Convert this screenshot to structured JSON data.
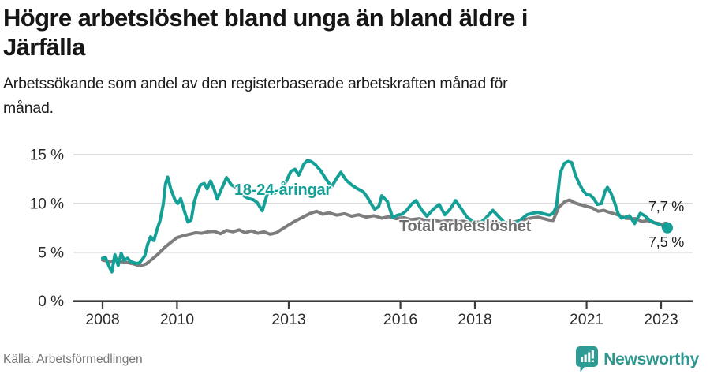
{
  "header": {
    "title_lines": [
      "Högre arbetslöshet bland unga än bland äldre i",
      "Järfälla"
    ],
    "subtitle_lines": [
      "Arbetssökande som andel av den registerbaserade arbetskraften månad för",
      "månad."
    ]
  },
  "chart_data": {
    "type": "line",
    "title": "Högre arbetslöshet bland unga än bland äldre i Järfälla",
    "subtitle": "Arbetssökande som andel av den registerbaserade arbetskraften månad för månad.",
    "unit": "%",
    "grid": "horizontal",
    "legend_position": "inline-annotations",
    "x_ticks": [
      2008,
      2010,
      2013,
      2016,
      2018,
      2021,
      2023
    ],
    "x_tick_labels": [
      "2008",
      "2010",
      "2013",
      "2016",
      "2018",
      "2021",
      "2023"
    ],
    "y_ticks": [
      0,
      5,
      10,
      15
    ],
    "y_tick_labels": [
      "0 %",
      "5 %",
      "10 %",
      "15 %"
    ],
    "x_range": [
      2007.2,
      2023.9
    ],
    "y_range": [
      0,
      16.3
    ],
    "series": [
      {
        "id": "total",
        "name": "Total arbetslöshet",
        "color": "#7d7d7d",
        "end_label": "7,7 %",
        "end_value": 7.7,
        "points": [
          [
            2008.0,
            4.2
          ],
          [
            2008.17,
            4.05
          ],
          [
            2008.33,
            4.15
          ],
          [
            2008.5,
            4.05
          ],
          [
            2008.67,
            3.95
          ],
          [
            2008.83,
            3.8
          ],
          [
            2009.0,
            3.6
          ],
          [
            2009.17,
            3.8
          ],
          [
            2009.33,
            4.3
          ],
          [
            2009.5,
            4.85
          ],
          [
            2009.67,
            5.5
          ],
          [
            2009.83,
            6.0
          ],
          [
            2010.0,
            6.5
          ],
          [
            2010.17,
            6.7
          ],
          [
            2010.33,
            6.85
          ],
          [
            2010.5,
            7.0
          ],
          [
            2010.67,
            6.95
          ],
          [
            2010.83,
            7.1
          ],
          [
            2011.0,
            7.15
          ],
          [
            2011.17,
            6.9
          ],
          [
            2011.33,
            7.25
          ],
          [
            2011.5,
            7.1
          ],
          [
            2011.67,
            7.3
          ],
          [
            2011.83,
            7.0
          ],
          [
            2012.0,
            7.2
          ],
          [
            2012.17,
            6.95
          ],
          [
            2012.33,
            7.1
          ],
          [
            2012.5,
            6.85
          ],
          [
            2012.67,
            7.0
          ],
          [
            2012.83,
            7.4
          ],
          [
            2013.0,
            7.8
          ],
          [
            2013.17,
            8.2
          ],
          [
            2013.38,
            8.6
          ],
          [
            2013.58,
            9.0
          ],
          [
            2013.75,
            9.2
          ],
          [
            2013.92,
            8.9
          ],
          [
            2014.08,
            9.05
          ],
          [
            2014.29,
            8.8
          ],
          [
            2014.5,
            8.95
          ],
          [
            2014.69,
            8.7
          ],
          [
            2014.88,
            8.85
          ],
          [
            2015.08,
            8.6
          ],
          [
            2015.29,
            8.75
          ],
          [
            2015.5,
            8.5
          ],
          [
            2015.69,
            8.65
          ],
          [
            2015.88,
            8.45
          ],
          [
            2016.08,
            8.55
          ],
          [
            2016.29,
            8.35
          ],
          [
            2016.5,
            8.45
          ],
          [
            2016.69,
            8.25
          ],
          [
            2016.88,
            8.3
          ],
          [
            2017.08,
            8.15
          ],
          [
            2017.29,
            8.25
          ],
          [
            2017.5,
            8.1
          ],
          [
            2017.69,
            8.2
          ],
          [
            2017.88,
            8.0
          ],
          [
            2018.08,
            8.1
          ],
          [
            2018.29,
            8.0
          ],
          [
            2018.5,
            8.1
          ],
          [
            2018.69,
            7.95
          ],
          [
            2018.88,
            8.05
          ],
          [
            2019.08,
            8.15
          ],
          [
            2019.29,
            8.3
          ],
          [
            2019.5,
            8.5
          ],
          [
            2019.69,
            8.6
          ],
          [
            2019.85,
            8.45
          ],
          [
            2020.0,
            8.3
          ],
          [
            2020.1,
            8.25
          ],
          [
            2020.25,
            9.6
          ],
          [
            2020.42,
            10.2
          ],
          [
            2020.54,
            10.35
          ],
          [
            2020.69,
            10.05
          ],
          [
            2020.85,
            9.85
          ],
          [
            2021.0,
            9.7
          ],
          [
            2021.15,
            9.55
          ],
          [
            2021.31,
            9.2
          ],
          [
            2021.46,
            9.3
          ],
          [
            2021.6,
            9.1
          ],
          [
            2021.75,
            8.95
          ],
          [
            2021.9,
            8.75
          ],
          [
            2022.04,
            8.5
          ],
          [
            2022.19,
            8.45
          ],
          [
            2022.33,
            8.45
          ],
          [
            2022.48,
            8.15
          ],
          [
            2022.63,
            8.25
          ],
          [
            2022.79,
            8.05
          ],
          [
            2022.94,
            7.95
          ],
          [
            2023.04,
            7.85
          ],
          [
            2023.12,
            7.7
          ]
        ]
      },
      {
        "id": "youth",
        "name": "18-24-åringar",
        "color": "#14a096",
        "end_label": "7,5 %",
        "end_value": 7.5,
        "points": [
          [
            2008.0,
            4.4
          ],
          [
            2008.08,
            4.45
          ],
          [
            2008.17,
            3.6
          ],
          [
            2008.25,
            3.0
          ],
          [
            2008.33,
            4.75
          ],
          [
            2008.42,
            3.65
          ],
          [
            2008.5,
            4.9
          ],
          [
            2008.58,
            4.15
          ],
          [
            2008.67,
            4.4
          ],
          [
            2008.75,
            4.05
          ],
          [
            2008.83,
            3.95
          ],
          [
            2008.92,
            3.85
          ],
          [
            2009.0,
            3.95
          ],
          [
            2009.13,
            4.6
          ],
          [
            2009.21,
            5.8
          ],
          [
            2009.29,
            6.6
          ],
          [
            2009.38,
            6.2
          ],
          [
            2009.46,
            7.3
          ],
          [
            2009.54,
            8.2
          ],
          [
            2009.63,
            9.9
          ],
          [
            2009.69,
            12.0
          ],
          [
            2009.75,
            12.7
          ],
          [
            2009.83,
            11.5
          ],
          [
            2009.94,
            10.4
          ],
          [
            2010.02,
            10.0
          ],
          [
            2010.1,
            10.5
          ],
          [
            2010.19,
            9.3
          ],
          [
            2010.29,
            8.1
          ],
          [
            2010.38,
            8.3
          ],
          [
            2010.46,
            10.1
          ],
          [
            2010.54,
            11.1
          ],
          [
            2010.63,
            11.9
          ],
          [
            2010.73,
            12.05
          ],
          [
            2010.81,
            11.5
          ],
          [
            2010.9,
            12.3
          ],
          [
            2011.0,
            11.4
          ],
          [
            2011.08,
            10.45
          ],
          [
            2011.19,
            11.45
          ],
          [
            2011.33,
            12.65
          ],
          [
            2011.46,
            11.9
          ],
          [
            2011.56,
            11.7
          ],
          [
            2011.67,
            11.35
          ],
          [
            2011.79,
            10.8
          ],
          [
            2011.92,
            10.5
          ],
          [
            2012.04,
            10.4
          ],
          [
            2012.15,
            10.1
          ],
          [
            2012.29,
            9.25
          ],
          [
            2012.42,
            10.9
          ],
          [
            2012.52,
            11.3
          ],
          [
            2012.63,
            11.05
          ],
          [
            2012.77,
            11.5
          ],
          [
            2012.9,
            12.0
          ],
          [
            2013.06,
            13.3
          ],
          [
            2013.17,
            13.5
          ],
          [
            2013.27,
            12.9
          ],
          [
            2013.4,
            14.0
          ],
          [
            2013.5,
            14.4
          ],
          [
            2013.6,
            14.3
          ],
          [
            2013.71,
            14.0
          ],
          [
            2013.85,
            13.4
          ],
          [
            2014.0,
            12.5
          ],
          [
            2014.15,
            11.7
          ],
          [
            2014.29,
            12.6
          ],
          [
            2014.4,
            13.2
          ],
          [
            2014.54,
            12.4
          ],
          [
            2014.69,
            11.9
          ],
          [
            2014.85,
            11.5
          ],
          [
            2015.0,
            11.2
          ],
          [
            2015.1,
            10.7
          ],
          [
            2015.21,
            10.0
          ],
          [
            2015.31,
            9.4
          ],
          [
            2015.42,
            9.7
          ],
          [
            2015.5,
            10.8
          ],
          [
            2015.65,
            10.2
          ],
          [
            2015.79,
            8.55
          ],
          [
            2015.92,
            8.8
          ],
          [
            2016.04,
            8.9
          ],
          [
            2016.17,
            9.3
          ],
          [
            2016.29,
            9.9
          ],
          [
            2016.42,
            10.3
          ],
          [
            2016.56,
            9.4
          ],
          [
            2016.71,
            8.7
          ],
          [
            2016.88,
            9.4
          ],
          [
            2017.04,
            9.9
          ],
          [
            2017.19,
            8.85
          ],
          [
            2017.33,
            9.4
          ],
          [
            2017.48,
            10.3
          ],
          [
            2017.63,
            9.5
          ],
          [
            2017.79,
            8.6
          ],
          [
            2017.94,
            8.2
          ],
          [
            2018.1,
            7.9
          ],
          [
            2018.29,
            8.5
          ],
          [
            2018.48,
            9.3
          ],
          [
            2018.65,
            8.6
          ],
          [
            2018.81,
            8.0
          ],
          [
            2018.94,
            7.7
          ],
          [
            2019.1,
            8.0
          ],
          [
            2019.25,
            8.4
          ],
          [
            2019.4,
            8.85
          ],
          [
            2019.54,
            9.0
          ],
          [
            2019.69,
            9.1
          ],
          [
            2019.85,
            8.95
          ],
          [
            2020.0,
            8.8
          ],
          [
            2020.1,
            9.0
          ],
          [
            2020.19,
            9.7
          ],
          [
            2020.29,
            13.1
          ],
          [
            2020.4,
            14.1
          ],
          [
            2020.5,
            14.3
          ],
          [
            2020.6,
            14.2
          ],
          [
            2020.69,
            13.0
          ],
          [
            2020.79,
            12.1
          ],
          [
            2020.9,
            11.35
          ],
          [
            2021.0,
            10.9
          ],
          [
            2021.1,
            10.85
          ],
          [
            2021.19,
            10.5
          ],
          [
            2021.29,
            9.9
          ],
          [
            2021.4,
            10.0
          ],
          [
            2021.5,
            11.3
          ],
          [
            2021.56,
            11.65
          ],
          [
            2021.65,
            11.1
          ],
          [
            2021.75,
            10.1
          ],
          [
            2021.85,
            8.95
          ],
          [
            2021.94,
            8.5
          ],
          [
            2022.04,
            8.6
          ],
          [
            2022.15,
            8.75
          ],
          [
            2022.29,
            7.95
          ],
          [
            2022.44,
            9.0
          ],
          [
            2022.56,
            8.75
          ],
          [
            2022.69,
            8.3
          ],
          [
            2022.83,
            8.0
          ],
          [
            2022.96,
            7.85
          ],
          [
            2023.06,
            7.75
          ],
          [
            2023.17,
            7.5
          ]
        ]
      }
    ]
  },
  "footer": {
    "source": "Källa: Arbetsförmedlingen",
    "brand": "Newsworthy",
    "brand_color": "#2f9790"
  }
}
